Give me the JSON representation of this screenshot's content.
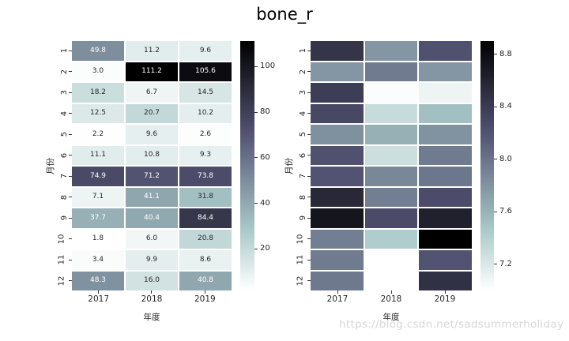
{
  "title": "bone_r",
  "watermark": "https://blog.csdn.net/sadsummerholiday",
  "chart_data": [
    {
      "type": "heatmap",
      "name": "left-annotated-heatmap",
      "colormap": "bone_r",
      "xlabel": "年度",
      "ylabel": "月份",
      "x": [
        "2017",
        "2018",
        "2019"
      ],
      "y": [
        "1",
        "2",
        "3",
        "4",
        "5",
        "6",
        "7",
        "8",
        "9",
        "10",
        "11",
        "12"
      ],
      "annotated": true,
      "vmin": 1.8,
      "vmax": 111.2,
      "values": [
        [
          49.8,
          11.2,
          9.6
        ],
        [
          3.0,
          111.2,
          105.6
        ],
        [
          18.2,
          6.7,
          14.5
        ],
        [
          12.5,
          20.7,
          10.2
        ],
        [
          2.2,
          9.6,
          2.6
        ],
        [
          11.1,
          10.8,
          9.3
        ],
        [
          74.9,
          71.2,
          73.8
        ],
        [
          7.1,
          41.1,
          31.8
        ],
        [
          37.7,
          40.4,
          84.4
        ],
        [
          1.8,
          6.0,
          20.8
        ],
        [
          3.4,
          9.9,
          8.6
        ],
        [
          48.3,
          16.0,
          40.8
        ]
      ],
      "colorbar_ticks": [
        {
          "value": 100,
          "label": "100"
        },
        {
          "value": 80,
          "label": "80"
        },
        {
          "value": 60,
          "label": "60"
        },
        {
          "value": 40,
          "label": "40"
        },
        {
          "value": 20,
          "label": "20"
        }
      ],
      "legend_position": "right-colorbar",
      "grid": false
    },
    {
      "type": "heatmap",
      "name": "right-shaded-heatmap",
      "colormap": "bone_r",
      "xlabel": "年度",
      "ylabel": "月份",
      "x": [
        "2017",
        "2018",
        "2019"
      ],
      "y": [
        "1",
        "2",
        "3",
        "4",
        "5",
        "6",
        "7",
        "8",
        "9",
        "10",
        "11",
        "12"
      ],
      "annotated": false,
      "vmin": 7.0,
      "vmax": 8.9,
      "values": [
        [
          8.45,
          7.78,
          8.22
        ],
        [
          7.78,
          7.95,
          7.78
        ],
        [
          8.38,
          7.02,
          7.09
        ],
        [
          8.29,
          7.31,
          7.52
        ],
        [
          7.82,
          7.62,
          7.8
        ],
        [
          8.22,
          7.28,
          7.95
        ],
        [
          8.2,
          7.87,
          7.98
        ],
        [
          8.56,
          7.93,
          8.25
        ],
        [
          8.72,
          8.26,
          8.62
        ],
        [
          7.93,
          7.43,
          8.9
        ],
        [
          7.95,
          null,
          8.2
        ],
        [
          7.96,
          null,
          8.48
        ]
      ],
      "colorbar_ticks": [
        {
          "value": 8.8,
          "label": "8.8"
        },
        {
          "value": 8.4,
          "label": "8.4"
        },
        {
          "value": 8.0,
          "label": "8.0"
        },
        {
          "value": 7.6,
          "label": "7.6"
        },
        {
          "value": 7.2,
          "label": "7.2"
        }
      ],
      "legend_position": "right-colorbar",
      "grid": false
    }
  ]
}
